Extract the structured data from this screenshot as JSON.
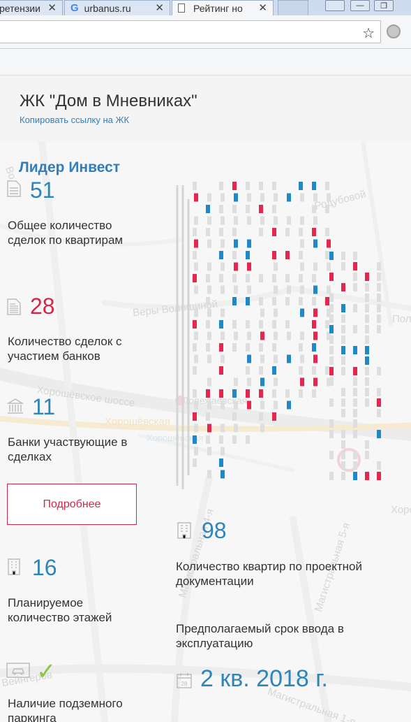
{
  "browser": {
    "tabs": [
      {
        "label": "ретензии",
        "icon": "page-icon"
      },
      {
        "label": "urbanus.ru",
        "icon": "google-icon"
      },
      {
        "label": "Рейтинг но",
        "icon": "document-icon"
      }
    ],
    "google_glyph": "G",
    "close_glyph": "✕",
    "star_glyph": "☆"
  },
  "page": {
    "title": "ЖК \"Дом в Мневниках\"",
    "copy_link": "Копировать ссылку на ЖК"
  },
  "developer": "Лидер Инвест",
  "stats": {
    "deals_total": {
      "value": "51",
      "label": "Общее количество сделок по квартирам",
      "icon": "document-icon"
    },
    "deals_banks": {
      "value": "28",
      "label": "Количество сделок с участием банков",
      "icon": "document-list-icon"
    },
    "banks": {
      "value": "11",
      "label": "Банки участвующие в сделках",
      "icon": "bank-icon"
    },
    "floors": {
      "value": "16",
      "label": "Планируемое количество этажей",
      "icon": "building-icon"
    },
    "parking": {
      "label": "Наличие подземного паркинга",
      "icon": "car-icon",
      "check": "✓"
    },
    "apartments": {
      "value": "98",
      "label": "Количество квартир по проектной документации",
      "icon": "building-icon"
    },
    "commissioning": {
      "label": "Предполагаемый срок ввода в эксплуатацию",
      "value": "2 кв. 2018 г.",
      "icon": "calendar-icon"
    }
  },
  "button_more": "Подробнее",
  "map_labels": {
    "hor_shosse": "Хорошёвское шоссе",
    "hor_shosse_orange": "Хорошёвская",
    "hor_station": "Хорошёвская",
    "polezhaevskaya": "Полежаевская",
    "very_voloshinoy": "Веры Волошиной",
    "mag4": "Магистральная 4-я",
    "mag5": "Магистральная 5-я",
    "mag1": "Магистральная 1-я",
    "vengerov": "Вейнгеров",
    "podubovoy": "Родубовой",
    "pol": "Пол",
    "horo": "Хоро",
    "vo": "Во"
  },
  "colors": {
    "accent_blue": "#2e85b9",
    "accent_red": "#d0284b",
    "window_blue": "#1f88c8",
    "window_red": "#e5264d",
    "window_gray": "#dedede",
    "check_green": "#8cc63f"
  }
}
